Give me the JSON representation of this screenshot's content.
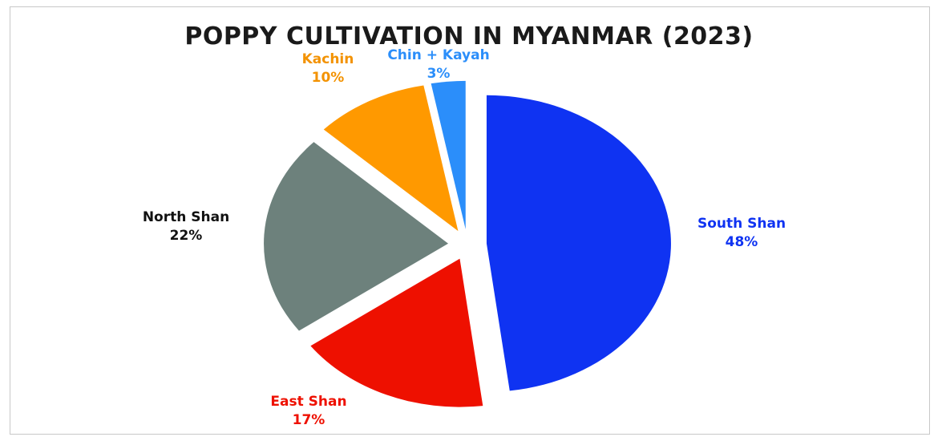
{
  "chart_data": {
    "type": "pie",
    "title": "POPPY CULTIVATION IN MYANMAR (2023)",
    "slices": [
      {
        "name": "South Shan",
        "value": 48,
        "label": "48%",
        "color": "#0f33f2"
      },
      {
        "name": "East Shan",
        "value": 17,
        "label": "17%",
        "color": "#ee1000"
      },
      {
        "name": "North Shan",
        "value": 22,
        "label": "22%",
        "color": "#6d817c"
      },
      {
        "name": "Kachin",
        "value": 10,
        "label": "10%",
        "color": "#ff9900"
      },
      {
        "name": "Chin + Kayah",
        "value": 3,
        "label": "3%",
        "color": "#2b8efa"
      }
    ],
    "exploded": true,
    "legend": "none"
  }
}
